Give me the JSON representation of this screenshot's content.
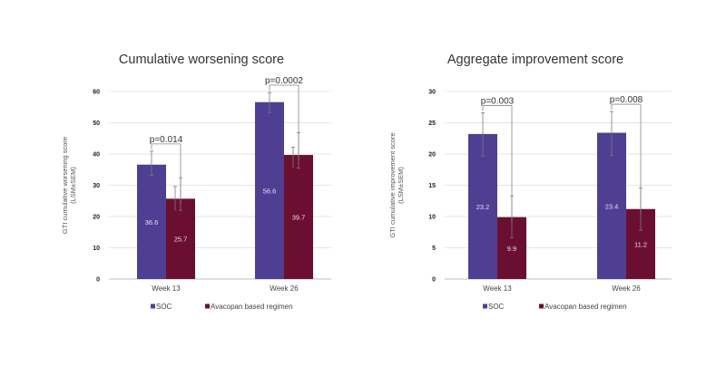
{
  "colors": {
    "soc": "#4f3f92",
    "avacopan": "#6a0f31"
  },
  "chart_data": [
    {
      "type": "bar",
      "title": "Cumulative worsening score",
      "ylabel_line1": "GTI cumulative worsening score",
      "ylabel_line2": "(LSM±SEM)",
      "xlabel": "",
      "categories": [
        "Week 13",
        "Week 26"
      ],
      "ylim": [
        0,
        60
      ],
      "yticks": [
        0,
        10,
        20,
        30,
        40,
        50,
        60
      ],
      "grid": true,
      "series": [
        {
          "name": "SOC",
          "values": [
            36.6,
            56.6
          ],
          "error_low": [
            33.2,
            53.3
          ],
          "error_high": [
            40.9,
            59.7
          ],
          "labels": [
            "36.6",
            "56.6"
          ]
        },
        {
          "name": "Avacopan based regimen",
          "values": [
            25.7,
            39.7
          ],
          "error_low": [
            22.0,
            35.5
          ],
          "error_high": [
            32.4,
            46.8
          ],
          "error_inner_high": [
            29.6,
            42.2
          ],
          "labels": [
            "25.7",
            "39.7"
          ]
        }
      ],
      "significance": [
        {
          "category": "Week 13",
          "label": "p=0.014"
        },
        {
          "category": "Week 26",
          "label": "p=0.0002"
        }
      ],
      "legend": {
        "position": "bottom",
        "entries": [
          "SOC",
          "Avacopan based regimen"
        ]
      }
    },
    {
      "type": "bar",
      "title": "Aggregate improvement score",
      "ylabel_line1": "GTI cumulative improvement score",
      "ylabel_line2": "(LSM±SEM)",
      "xlabel": "",
      "categories": [
        "Week 13",
        "Week 26"
      ],
      "ylim": [
        0,
        30
      ],
      "yticks": [
        0,
        5,
        10,
        15,
        20,
        25,
        30
      ],
      "grid": true,
      "series": [
        {
          "name": "SOC",
          "values": [
            23.2,
            23.4
          ],
          "error_low": [
            19.7,
            19.8
          ],
          "error_high": [
            26.6,
            26.8
          ],
          "labels": [
            "23.2",
            "23.4"
          ]
        },
        {
          "name": "Avacopan based regimen",
          "values": [
            9.9,
            11.2
          ],
          "error_low": [
            6.6,
            7.8
          ],
          "error_high": [
            13.3,
            14.6
          ],
          "labels": [
            "9.9",
            "11.2"
          ]
        }
      ],
      "significance": [
        {
          "category": "Week 13",
          "label": "p=0.003"
        },
        {
          "category": "Week 26",
          "label": "p=0.008"
        }
      ],
      "legend": {
        "position": "bottom",
        "entries": [
          "SOC",
          "Avacopan based regimen"
        ]
      }
    }
  ]
}
